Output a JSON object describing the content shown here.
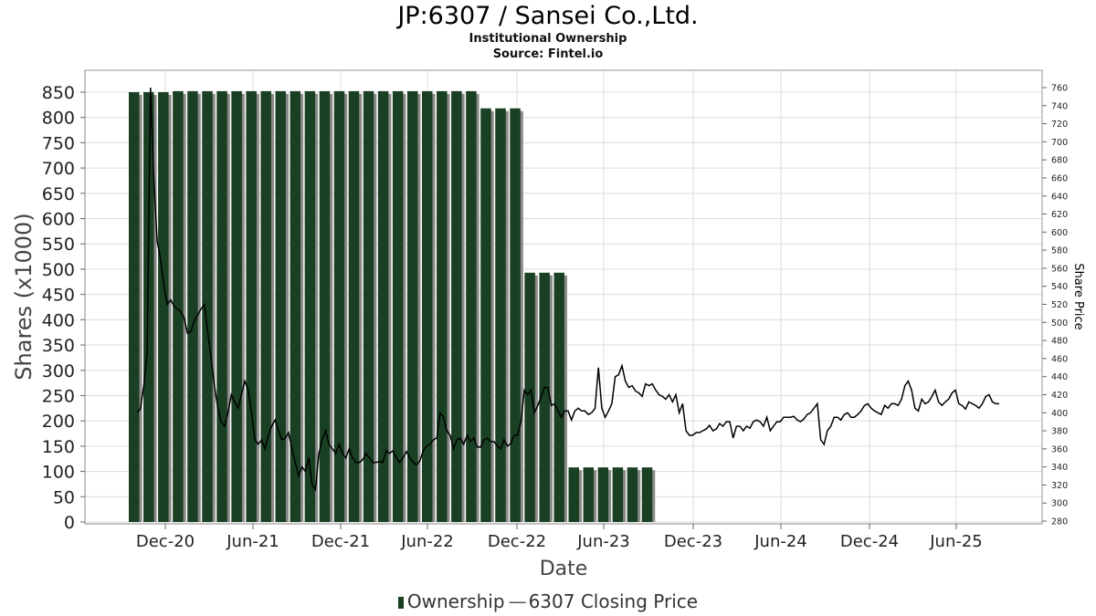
{
  "header": {
    "title": "JP:6307 / Sansei Co.,Ltd.",
    "subtitle": "Institutional Ownership",
    "source": "Source: Fintel.io"
  },
  "legend": {
    "ownership_label": "Ownership",
    "price_label": "6307 Closing Price"
  },
  "colors": {
    "bar": "#1a4024",
    "bar_shadow": "#8a8a8a",
    "price_line": "#000000",
    "grid": "#dcdcdc"
  },
  "chart_data": {
    "type": "bar",
    "title": "JP:6307 / Sansei Co.,Ltd.",
    "subtitle": "Institutional Ownership",
    "xlabel": "Date",
    "ylabel": "Shares (x1000)",
    "y2label": "Share Price",
    "ylim": [
      0,
      850
    ],
    "y2lim": [
      280,
      760
    ],
    "yticks": [
      0,
      50,
      100,
      150,
      200,
      250,
      300,
      350,
      400,
      450,
      500,
      550,
      600,
      650,
      700,
      750,
      800,
      850
    ],
    "y2ticks": [
      280,
      300,
      320,
      340,
      360,
      380,
      400,
      420,
      440,
      460,
      480,
      500,
      520,
      540,
      560,
      580,
      600,
      620,
      640,
      660,
      680,
      700,
      720,
      740,
      760
    ],
    "x_tick_labels": [
      "Dec-20",
      "Jun-21",
      "Dec-21",
      "Jun-22",
      "Dec-22",
      "Jun-23",
      "Dec-23",
      "Jun-24",
      "Dec-24",
      "Jun-25"
    ],
    "grid": true,
    "legend_position": "bottom",
    "series": [
      {
        "name": "Ownership",
        "type": "bar",
        "values": [
          850,
          850,
          850,
          852,
          852,
          852,
          852,
          852,
          852,
          852,
          852,
          852,
          852,
          852,
          852,
          852,
          852,
          852,
          852,
          852,
          852,
          852,
          852,
          852,
          818,
          818,
          818,
          493,
          493,
          493,
          108,
          108,
          108,
          108,
          108,
          108
        ]
      },
      {
        "name": "6307 Closing Price",
        "type": "line",
        "values": [
          400,
          404,
          430,
          465,
          760,
          660,
          590,
          570,
          540,
          520,
          525,
          518,
          515,
          512,
          505,
          488,
          490,
          502,
          508,
          515,
          520,
          490,
          460,
          430,
          405,
          390,
          385,
          400,
          420,
          412,
          405,
          420,
          435,
          425,
          400,
          370,
          365,
          370,
          360,
          375,
          385,
          392,
          380,
          370,
          372,
          378,
          360,
          345,
          330,
          340,
          335,
          350,
          320,
          315,
          355,
          370,
          380,
          365,
          360,
          355,
          365,
          355,
          350,
          360,
          350,
          345,
          345,
          348,
          355,
          350,
          345,
          345,
          346,
          345,
          358,
          355,
          358,
          350,
          345,
          350,
          357,
          350,
          345,
          342,
          347,
          358,
          363,
          365,
          370,
          372,
          400,
          395,
          380,
          375,
          360,
          370,
          372,
          365,
          375,
          368,
          372,
          362,
          362,
          370,
          372,
          368,
          368,
          363,
          360,
          370,
          363,
          366,
          375,
          375,
          390,
          425,
          420,
          425,
          400,
          408,
          418,
          428,
          428,
          408,
          410,
          402,
          395,
          402,
          402,
          392,
          402,
          405,
          402,
          402,
          398,
          400,
          405,
          450,
          405,
          395,
          402,
          410,
          440,
          442,
          452,
          435,
          428,
          430,
          424,
          422,
          418,
          432,
          430,
          432,
          425,
          420,
          418,
          415,
          420,
          412,
          420,
          400,
          410,
          380,
          375,
          375,
          378,
          378,
          380,
          382,
          386,
          380,
          382,
          388,
          385,
          390,
          390,
          372,
          385,
          385,
          380,
          385,
          383,
          390,
          392,
          390,
          385,
          395,
          380,
          385,
          390,
          390,
          395,
          395,
          395,
          396,
          392,
          390,
          393,
          398,
          400,
          405,
          410,
          370,
          365,
          380,
          385,
          395,
          395,
          392,
          398,
          400,
          395,
          395,
          398,
          402,
          408,
          410,
          405,
          402,
          400,
          398,
          408,
          405,
          410,
          410,
          408,
          415,
          430,
          435,
          425,
          405,
          402,
          415,
          410,
          412,
          418,
          425,
          412,
          408,
          412,
          415,
          422,
          425,
          410,
          408,
          404,
          412,
          410,
          408,
          405,
          410,
          418,
          420,
          412,
          410,
          410
        ]
      }
    ]
  }
}
